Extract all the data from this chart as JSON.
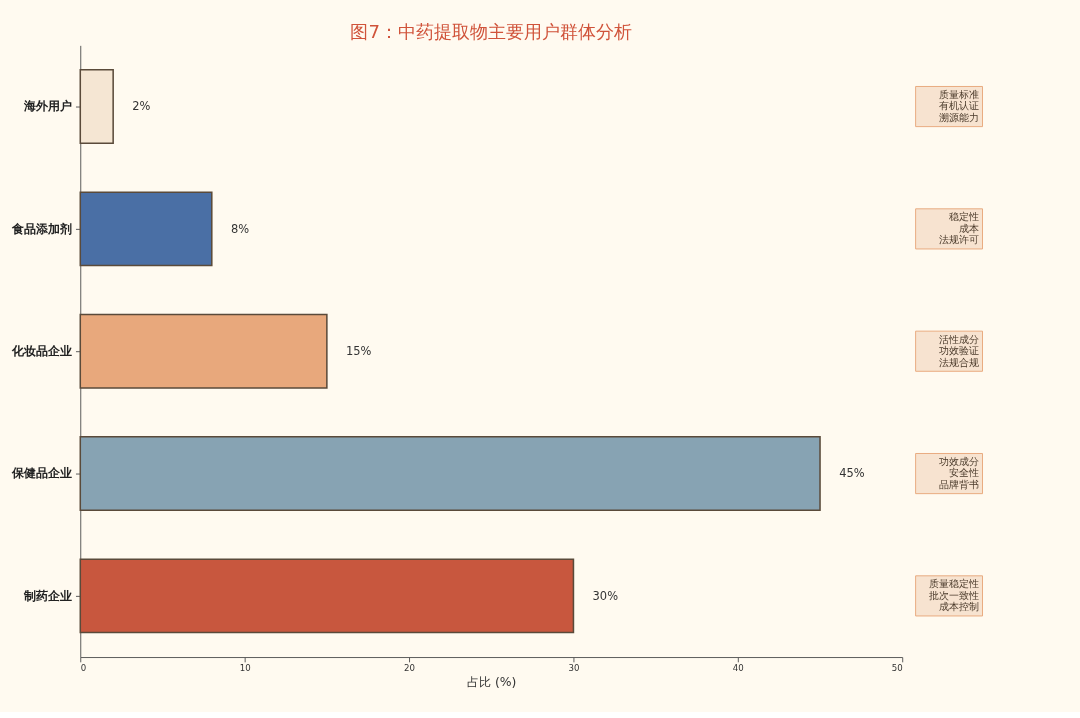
{
  "chart_data": {
    "type": "bar",
    "orientation": "horizontal",
    "title": "图7：中药提取物主要用户群体分析",
    "xlabel": "占比 (%)",
    "categories": [
      "海外用户",
      "食品添加剂",
      "化妆品企业",
      "保健品企业",
      "制药企业"
    ],
    "values": [
      2,
      8,
      15,
      45,
      30
    ],
    "colors": [
      "#f5e6d3",
      "#4a6fa5",
      "#e8a87c",
      "#87a3b3",
      "#c8573e"
    ],
    "value_labels": [
      "2%",
      "8%",
      "15%",
      "45%",
      "30%"
    ],
    "xlim": [
      0,
      50
    ],
    "xticks": [
      0,
      10,
      20,
      30,
      40,
      50
    ],
    "grid": false,
    "legend": false,
    "annotations": [
      "质量标准",
      "有机认证",
      "溯源能力",
      "稳定性",
      "成本",
      "法规许可",
      "活性成分",
      "功效验证",
      "法规合规",
      "功效成分",
      "安全性",
      "品牌背书",
      "质量稳定性",
      "批次一致性",
      "成本控制"
    ]
  }
}
